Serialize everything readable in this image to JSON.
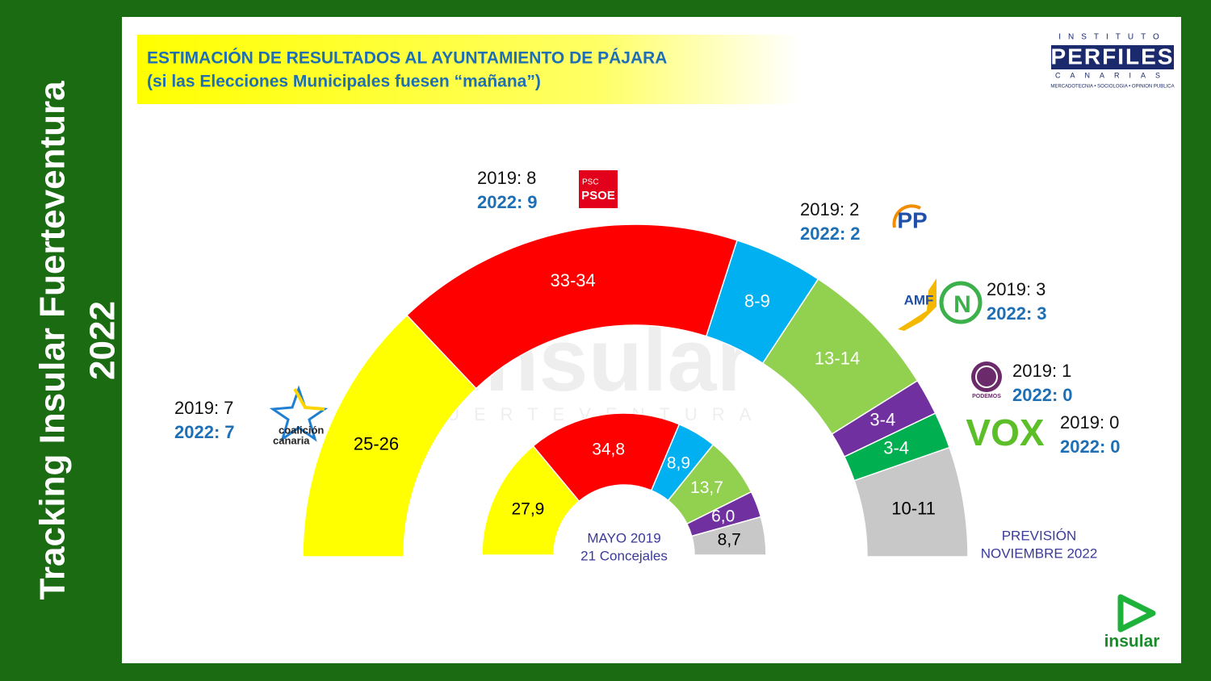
{
  "side_title": [
    "Tracking Insular Fuerteventura",
    "2022"
  ],
  "header": {
    "title": "ESTIMACIÓN DE RESULTADOS AL AYUNTAMIENTO DE PÁJARA",
    "subtitle": "(si las Elecciones Municipales fuesen “mañana”)"
  },
  "institute_logo": {
    "top": "INSTITUTO",
    "name": "PERFILES",
    "bottom": "CANARIAS",
    "tagline": "MERCADOTECNIA • SOCIOLOGIA • OPINION PUBLICA"
  },
  "watermark": {
    "name": "insular",
    "region": "FUERTEVENTURA"
  },
  "brand_logo": "insular",
  "seat_labels": [
    "2019:",
    "2022:"
  ],
  "parties": [
    {
      "logo": [
        "coalición",
        "canaria"
      ],
      "seats_2019": 7,
      "seats_2022": 7
    },
    {
      "logo": [
        "PSC",
        "PSOE"
      ],
      "seats_2019": 8,
      "seats_2022": 9
    },
    {
      "logo": [
        "PP"
      ],
      "seats_2019": 2,
      "seats_2022": 2
    },
    {
      "logo": [
        "AMF",
        "N"
      ],
      "seats_2019": 3,
      "seats_2022": 3
    },
    {
      "logo": [
        "PODEMOS"
      ],
      "seats_2019": 1,
      "seats_2022": 0
    },
    {
      "logo": [
        "VOX"
      ],
      "seats_2019": 0,
      "seats_2022": 0
    }
  ],
  "chart_data": [
    {
      "type": "half-donut",
      "caption": [
        "PREVISIÓN",
        "NOVIEMBRE 2022"
      ],
      "values": [
        25.5,
        33.5,
        8.5,
        13.5,
        3.5,
        3.5,
        10.5
      ],
      "value_labels": [
        "25-26",
        "33-34",
        "8-9",
        "13-14",
        "3-4",
        "3-4",
        "10-11"
      ],
      "colors": [
        "#ffff00",
        "#ff0000",
        "#00b0f0",
        "#92d050",
        "#7030a0",
        "#00b050",
        "#c8c8c8"
      ],
      "label_colors": [
        "#000000",
        "#ffffff",
        "#ffffff",
        "#ffffff",
        "#ffffff",
        "#ffffff",
        "#000000"
      ]
    },
    {
      "type": "half-donut",
      "caption": [
        "MAYO 2019",
        "21 Concejales"
      ],
      "values": [
        27.9,
        34.8,
        8.9,
        13.7,
        6.0,
        8.7
      ],
      "value_labels": [
        "27,9",
        "34,8",
        "8,9",
        "13,7",
        "6,0",
        "8,7"
      ],
      "colors": [
        "#ffff00",
        "#ff0000",
        "#00b0f0",
        "#92d050",
        "#7030a0",
        "#c8c8c8"
      ],
      "label_colors": [
        "#000000",
        "#ffffff",
        "#ffffff",
        "#ffffff",
        "#ffffff",
        "#000000"
      ]
    }
  ]
}
